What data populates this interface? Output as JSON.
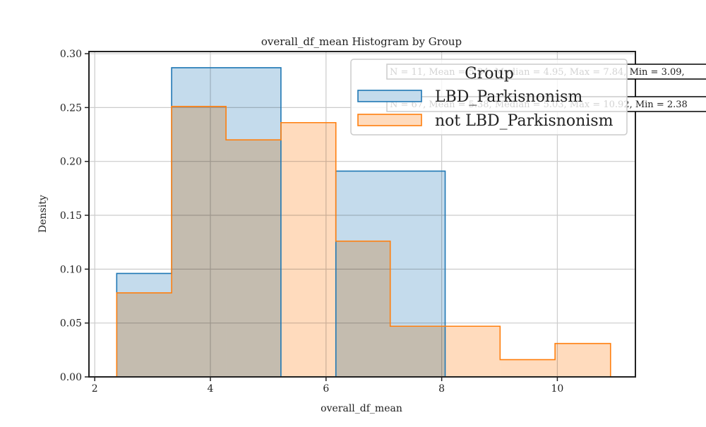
{
  "chart_data": {
    "type": "histogram",
    "title": "overall_df_mean Histogram by Group",
    "xlabel": "overall_df_mean",
    "ylabel": "Density",
    "xlim": [
      1.9,
      11.35
    ],
    "ylim": [
      0,
      0.302
    ],
    "xticks": [
      2,
      4,
      6,
      8,
      10
    ],
    "yticks": [
      0.0,
      0.05,
      0.1,
      0.15,
      0.2,
      0.25,
      0.3
    ],
    "grid": true,
    "legend": {
      "title": "Group",
      "placement": "top-right",
      "entries": [
        "LBD_Parkisnonism",
        "not LBD_Parkisnonism"
      ]
    },
    "series": [
      {
        "name": "LBD_Parkisnonism",
        "color": "#1f77b4",
        "fill": "#c4dbec",
        "bins": [
          {
            "x0": 2.38,
            "x1": 3.33,
            "density": 0.096
          },
          {
            "x0": 3.33,
            "x1": 5.22,
            "density": 0.287
          },
          {
            "x0": 6.17,
            "x1": 8.06,
            "density": 0.191
          }
        ]
      },
      {
        "name": "not LBD_Parkisnonism",
        "color": "#ff7f0e",
        "fill": "#ffdbbd",
        "bins": [
          {
            "x0": 2.38,
            "x1": 3.33,
            "density": 0.078
          },
          {
            "x0": 3.33,
            "x1": 4.27,
            "density": 0.251
          },
          {
            "x0": 4.27,
            "x1": 5.22,
            "density": 0.22
          },
          {
            "x0": 5.22,
            "x1": 6.17,
            "density": 0.236
          },
          {
            "x0": 6.17,
            "x1": 7.11,
            "density": 0.126
          },
          {
            "x0": 7.11,
            "x1": 8.06,
            "density": 0.047
          },
          {
            "x0": 8.06,
            "x1": 9.01,
            "density": 0.047
          },
          {
            "x0": 9.01,
            "x1": 9.96,
            "density": 0.016
          },
          {
            "x0": 9.96,
            "x1": 10.92,
            "density": 0.031
          }
        ]
      }
    ],
    "annotations": [
      "N = 11, Mean = 5.34, Median = 4.95, Max = 7.84, Min = 3.09,",
      "N = 67, Mean = 5.38, Median = 5.03, Max = 10.92, Min = 2.38"
    ]
  }
}
